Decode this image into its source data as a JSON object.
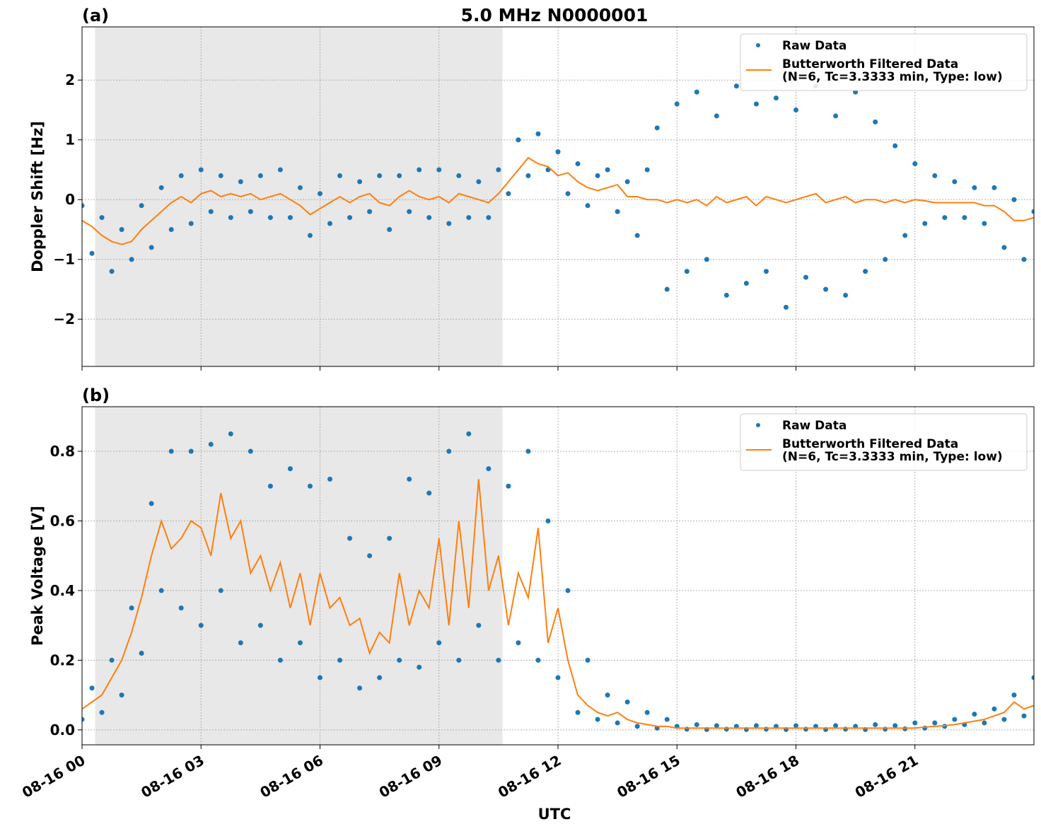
{
  "chart_data": [
    {
      "type": "scatter",
      "title": "5.0 MHz N0000001",
      "panel_label": "(a)",
      "ylabel": "Doppler Shift [Hz]",
      "xlim": [
        0,
        24
      ],
      "xticks": [
        0,
        3,
        6,
        9,
        12,
        15,
        18,
        21
      ],
      "ylim": [
        -2.79,
        2.89
      ],
      "yticks": [
        {
          "value": -2,
          "label": "−2"
        },
        {
          "value": -1,
          "label": "−1"
        },
        0,
        1,
        2
      ],
      "grid": true,
      "legend": "upper right",
      "shaded_region": [
        0.33,
        10.6
      ],
      "shade_color": "#e8e8e8",
      "x": [
        0,
        0.25,
        0.5,
        0.75,
        1,
        1.25,
        1.5,
        1.75,
        2,
        2.25,
        2.5,
        2.75,
        3,
        3.25,
        3.5,
        3.75,
        4,
        4.25,
        4.5,
        4.75,
        5,
        5.25,
        5.5,
        5.75,
        6,
        6.25,
        6.5,
        6.75,
        7,
        7.25,
        7.5,
        7.75,
        8,
        8.25,
        8.5,
        8.75,
        9,
        9.25,
        9.5,
        9.75,
        10,
        10.25,
        10.5,
        10.75,
        11,
        11.25,
        11.5,
        11.75,
        12,
        12.25,
        12.5,
        12.75,
        13,
        13.25,
        13.5,
        13.75,
        14,
        14.25,
        14.5,
        14.75,
        15,
        15.25,
        15.5,
        15.75,
        16,
        16.25,
        16.5,
        16.75,
        17,
        17.25,
        17.5,
        17.75,
        18,
        18.25,
        18.5,
        18.75,
        19,
        19.25,
        19.5,
        19.75,
        20,
        20.25,
        20.5,
        20.75,
        21,
        21.25,
        21.5,
        21.75,
        22,
        22.25,
        22.5,
        22.75,
        23,
        23.25,
        23.5,
        23.75,
        24
      ],
      "series": [
        {
          "name": "Raw Data",
          "mode": "markers",
          "color": "#1f77b4",
          "values": [
            -0.1,
            -0.9,
            -0.3,
            -1.2,
            -0.5,
            -1.0,
            -0.1,
            -0.8,
            0.2,
            -0.5,
            0.4,
            -0.4,
            0.5,
            -0.2,
            0.4,
            -0.3,
            0.3,
            -0.2,
            0.4,
            -0.3,
            0.5,
            -0.3,
            0.2,
            -0.6,
            0.1,
            -0.4,
            0.4,
            -0.3,
            0.3,
            -0.2,
            0.4,
            -0.5,
            0.4,
            -0.2,
            0.5,
            -0.3,
            0.5,
            -0.4,
            0.4,
            -0.3,
            0.3,
            -0.3,
            0.5,
            0.1,
            1.0,
            0.4,
            1.1,
            0.5,
            0.8,
            0.1,
            0.6,
            -0.1,
            0.4,
            0.5,
            -0.2,
            0.3,
            -0.6,
            0.5,
            1.2,
            -1.5,
            1.6,
            -1.2,
            1.8,
            -1.0,
            1.4,
            -1.6,
            1.9,
            -1.4,
            1.6,
            -1.2,
            1.7,
            -1.8,
            1.5,
            -1.3,
            1.9,
            -1.5,
            1.4,
            -1.6,
            1.8,
            -1.2,
            1.3,
            -1.0,
            0.9,
            -0.6,
            0.6,
            -0.4,
            0.4,
            -0.3,
            0.3,
            -0.3,
            0.2,
            -0.4,
            0.2,
            -0.8,
            0.0,
            -1.0,
            -0.2
          ]
        },
        {
          "name": "Butterworth Filtered Data\n(N=6, Tc=3.3333 min, Type: low)",
          "mode": "line",
          "color": "#ff7f0e",
          "values": [
            -0.35,
            -0.45,
            -0.6,
            -0.7,
            -0.75,
            -0.7,
            -0.5,
            -0.35,
            -0.2,
            -0.05,
            0.05,
            -0.05,
            0.1,
            0.15,
            0.05,
            0.1,
            0.05,
            0.1,
            0.0,
            0.05,
            0.1,
            0.0,
            -0.1,
            -0.25,
            -0.15,
            -0.05,
            0.05,
            -0.05,
            0.05,
            0.1,
            -0.05,
            -0.1,
            0.05,
            0.15,
            0.05,
            0.0,
            0.05,
            -0.05,
            0.1,
            0.05,
            0.0,
            -0.05,
            0.1,
            0.3,
            0.5,
            0.7,
            0.6,
            0.55,
            0.4,
            0.45,
            0.3,
            0.2,
            0.15,
            0.2,
            0.25,
            0.05,
            0.05,
            0.0,
            0.0,
            -0.05,
            0.0,
            -0.05,
            0.0,
            -0.1,
            0.05,
            -0.05,
            0.0,
            0.05,
            -0.1,
            0.05,
            0.0,
            -0.05,
            0.0,
            0.05,
            0.1,
            -0.05,
            0.0,
            0.05,
            -0.05,
            0.0,
            0.0,
            -0.05,
            0.0,
            -0.05,
            0.0,
            -0.02,
            -0.05,
            -0.05,
            -0.05,
            -0.05,
            -0.05,
            -0.1,
            -0.1,
            -0.2,
            -0.35,
            -0.35,
            -0.3
          ]
        }
      ]
    },
    {
      "type": "scatter",
      "panel_label": "(b)",
      "ylabel": "Peak Voltage [V]",
      "xlabel": "UTC",
      "xlim": [
        0,
        24
      ],
      "xticks": [
        {
          "value": 0,
          "label": "08-16 00"
        },
        {
          "value": 3,
          "label": "08-16 03"
        },
        {
          "value": 6,
          "label": "08-16 06"
        },
        {
          "value": 9,
          "label": "08-16 09"
        },
        {
          "value": 12,
          "label": "08-16 12"
        },
        {
          "value": 15,
          "label": "08-16 15"
        },
        {
          "value": 18,
          "label": "08-16 18"
        },
        {
          "value": 21,
          "label": "08-16 21"
        }
      ],
      "ylim": [
        -0.043,
        0.928
      ],
      "yticks": [
        {
          "value": 0,
          "label": "0.0"
        },
        0.2,
        0.4,
        0.6,
        0.8
      ],
      "grid": true,
      "legend": "upper right",
      "shaded_region": [
        0.33,
        10.6
      ],
      "shade_color": "#e8e8e8",
      "x": [
        0,
        0.25,
        0.5,
        0.75,
        1,
        1.25,
        1.5,
        1.75,
        2,
        2.25,
        2.5,
        2.75,
        3,
        3.25,
        3.5,
        3.75,
        4,
        4.25,
        4.5,
        4.75,
        5,
        5.25,
        5.5,
        5.75,
        6,
        6.25,
        6.5,
        6.75,
        7,
        7.25,
        7.5,
        7.75,
        8,
        8.25,
        8.5,
        8.75,
        9,
        9.25,
        9.5,
        9.75,
        10,
        10.25,
        10.5,
        10.75,
        11,
        11.25,
        11.5,
        11.75,
        12,
        12.25,
        12.5,
        12.75,
        13,
        13.25,
        13.5,
        13.75,
        14,
        14.25,
        14.5,
        14.75,
        15,
        15.25,
        15.5,
        15.75,
        16,
        16.25,
        16.5,
        16.75,
        17,
        17.25,
        17.5,
        17.75,
        18,
        18.25,
        18.5,
        18.75,
        19,
        19.25,
        19.5,
        19.75,
        20,
        20.25,
        20.5,
        20.75,
        21,
        21.25,
        21.5,
        21.75,
        22,
        22.25,
        22.5,
        22.75,
        23,
        23.25,
        23.5,
        23.75,
        24
      ],
      "series": [
        {
          "name": "Raw Data",
          "mode": "markers",
          "color": "#1f77b4",
          "values": [
            0.03,
            0.12,
            0.05,
            0.2,
            0.1,
            0.35,
            0.22,
            0.65,
            0.4,
            0.8,
            0.35,
            0.8,
            0.3,
            0.82,
            0.4,
            0.85,
            0.25,
            0.8,
            0.3,
            0.7,
            0.2,
            0.75,
            0.25,
            0.7,
            0.15,
            0.72,
            0.2,
            0.55,
            0.12,
            0.5,
            0.15,
            0.55,
            0.2,
            0.72,
            0.18,
            0.68,
            0.25,
            0.8,
            0.2,
            0.85,
            0.3,
            0.75,
            0.2,
            0.7,
            0.25,
            0.8,
            0.2,
            0.6,
            0.15,
            0.4,
            0.05,
            0.2,
            0.03,
            0.1,
            0.02,
            0.08,
            0.01,
            0.05,
            0.005,
            0.03,
            0.01,
            0.002,
            0.015,
            0.001,
            0.012,
            0.002,
            0.01,
            0.001,
            0.012,
            0.002,
            0.01,
            0.001,
            0.012,
            0.002,
            0.01,
            0.001,
            0.012,
            0.002,
            0.01,
            0.001,
            0.015,
            0.002,
            0.012,
            0.003,
            0.02,
            0.005,
            0.02,
            0.01,
            0.03,
            0.015,
            0.045,
            0.02,
            0.06,
            0.03,
            0.1,
            0.04,
            0.15
          ]
        },
        {
          "name": "Butterworth Filtered Data\n(N=6, Tc=3.3333 min, Type: low)",
          "mode": "line",
          "color": "#ff7f0e",
          "values": [
            0.06,
            0.08,
            0.1,
            0.15,
            0.2,
            0.28,
            0.38,
            0.5,
            0.6,
            0.52,
            0.55,
            0.6,
            0.58,
            0.5,
            0.68,
            0.55,
            0.6,
            0.45,
            0.5,
            0.4,
            0.48,
            0.35,
            0.45,
            0.3,
            0.45,
            0.35,
            0.38,
            0.3,
            0.32,
            0.22,
            0.28,
            0.25,
            0.45,
            0.3,
            0.4,
            0.35,
            0.55,
            0.3,
            0.6,
            0.35,
            0.72,
            0.4,
            0.5,
            0.3,
            0.45,
            0.38,
            0.58,
            0.25,
            0.35,
            0.2,
            0.1,
            0.07,
            0.05,
            0.04,
            0.05,
            0.03,
            0.02,
            0.015,
            0.01,
            0.01,
            0.005,
            0.005,
            0.005,
            0.005,
            0.005,
            0.005,
            0.005,
            0.005,
            0.005,
            0.005,
            0.005,
            0.005,
            0.005,
            0.005,
            0.005,
            0.005,
            0.005,
            0.005,
            0.005,
            0.005,
            0.005,
            0.005,
            0.005,
            0.005,
            0.005,
            0.008,
            0.01,
            0.012,
            0.015,
            0.02,
            0.025,
            0.03,
            0.04,
            0.05,
            0.08,
            0.06,
            0.07
          ]
        }
      ]
    }
  ]
}
